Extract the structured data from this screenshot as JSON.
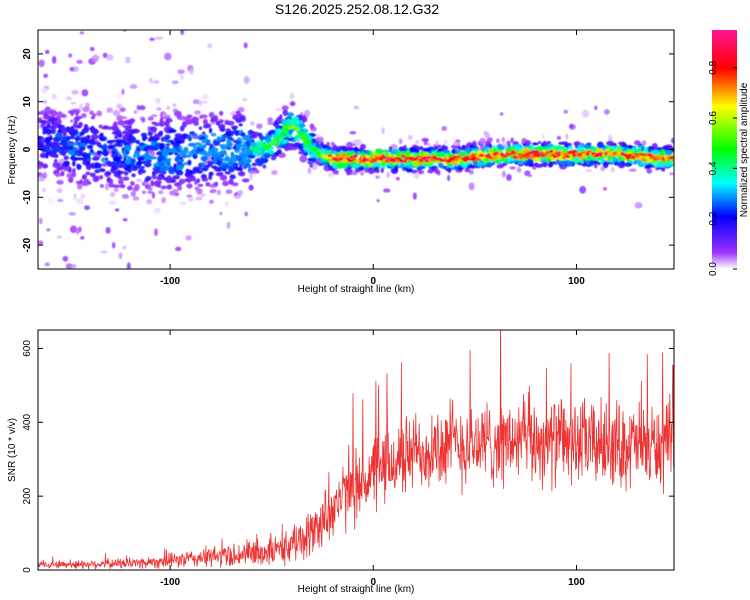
{
  "figure": {
    "title": "S126.2025.252.08.12.G32"
  },
  "chart_data": [
    {
      "type": "heatmap",
      "xlabel": "Height of straight line (km)",
      "ylabel": "Frequency (Hz)",
      "xlim": [
        -165,
        148
      ],
      "ylim": [
        -25,
        25
      ],
      "x_ticks": [
        "-100",
        "0",
        "100"
      ],
      "y_ticks": [
        "-20",
        "-10",
        "0",
        "10",
        "20"
      ],
      "colorbar": {
        "label": "Normalized spectral amplitude",
        "range": [
          0.0,
          0.95
        ],
        "ticks": [
          "0.0",
          "0.2",
          "0.4",
          "0.6",
          "0.8"
        ],
        "colormap": [
          "#ffffff",
          "#8000ff",
          "#0000ff",
          "#00ffff",
          "#00ff00",
          "#ffff00",
          "#ff0000",
          "#ff1493"
        ]
      },
      "ridge": {
        "x": [
          -165,
          -140,
          -120,
          -100,
          -80,
          -65,
          -55,
          -48,
          -40,
          -35,
          -30,
          -25,
          -20,
          0,
          20,
          40,
          60,
          80,
          100,
          120,
          148
        ],
        "freq": [
          2,
          0,
          -1,
          -1,
          0,
          0,
          0,
          2,
          5,
          3,
          0,
          -1,
          -2,
          -2,
          -2,
          -2,
          -1,
          -1,
          -1,
          -1,
          -2
        ],
        "peak_amplitude": [
          0.25,
          0.3,
          0.3,
          0.35,
          0.35,
          0.4,
          0.45,
          0.5,
          0.55,
          0.5,
          0.5,
          0.6,
          0.8,
          0.85,
          0.85,
          0.8,
          0.8,
          0.85,
          0.8,
          0.8,
          0.8
        ]
      }
    },
    {
      "type": "line",
      "xlabel": "Height of straight line (km)",
      "ylabel": "SNR (10 * v/v)",
      "xlim": [
        -165,
        148
      ],
      "ylim": [
        0,
        650
      ],
      "x_ticks": [
        "-100",
        "0",
        "100"
      ],
      "y_ticks": [
        "0",
        "200",
        "400",
        "600"
      ],
      "color": "#ee3333",
      "envelope": {
        "x": [
          -165,
          -150,
          -120,
          -100,
          -80,
          -60,
          -45,
          -40,
          -30,
          -20,
          -10,
          0,
          10,
          20,
          30,
          40,
          50,
          60,
          80,
          100,
          120,
          140,
          148
        ],
        "mean": [
          15,
          15,
          18,
          25,
          35,
          45,
          55,
          70,
          100,
          170,
          220,
          260,
          290,
          320,
          330,
          340,
          340,
          345,
          350,
          345,
          340,
          335,
          330
        ],
        "spread": [
          8,
          12,
          15,
          20,
          30,
          40,
          45,
          50,
          70,
          90,
          100,
          110,
          110,
          110,
          120,
          130,
          120,
          120,
          120,
          120,
          120,
          120,
          130
        ]
      }
    }
  ]
}
